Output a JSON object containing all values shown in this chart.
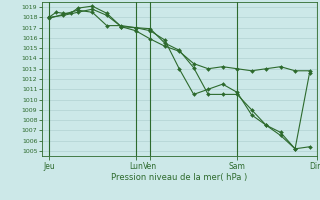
{
  "xlabel": "Pression niveau de la mer( hPa )",
  "ylim": [
    1004.5,
    1019.5
  ],
  "yticks": [
    1005,
    1006,
    1007,
    1008,
    1009,
    1010,
    1011,
    1012,
    1013,
    1014,
    1015,
    1016,
    1017,
    1018,
    1019
  ],
  "bg_color": "#cce8e8",
  "grid_color": "#aacccc",
  "line_color": "#2d6a2d",
  "xlim": [
    0,
    19
  ],
  "xtick_positions": [
    0.5,
    6.5,
    7.5,
    13.5,
    19.0
  ],
  "xtick_labels": [
    "Jeu",
    "Lun",
    "Ven",
    "Sam",
    "Dim"
  ],
  "vline_positions": [
    0.5,
    6.5,
    7.5,
    13.5,
    19.0
  ],
  "line1_x": [
    0.5,
    1.0,
    1.5,
    2.0,
    2.5,
    3.5,
    4.5,
    5.5,
    6.5,
    7.5,
    8.5,
    9.5,
    10.5,
    11.5,
    12.5,
    13.5,
    14.5,
    15.5,
    16.5,
    17.5,
    18.5
  ],
  "line1_y": [
    1018.0,
    1018.5,
    1018.4,
    1018.4,
    1018.9,
    1019.1,
    1018.4,
    1017.1,
    1017.0,
    1016.9,
    1015.5,
    1014.8,
    1013.1,
    1010.5,
    1010.5,
    1010.5,
    1009.0,
    1007.5,
    1006.5,
    1005.2,
    1005.4
  ],
  "line2_x": [
    0.5,
    1.5,
    2.5,
    3.5,
    4.5,
    5.5,
    6.5,
    7.5,
    8.5,
    9.5,
    10.5,
    11.5,
    12.5,
    13.5,
    14.5,
    15.5,
    16.5,
    17.5,
    18.5
  ],
  "line2_y": [
    1017.9,
    1018.3,
    1018.7,
    1018.5,
    1017.2,
    1017.2,
    1017.0,
    1016.7,
    1015.8,
    1013.0,
    1010.5,
    1011.0,
    1011.5,
    1010.7,
    1008.5,
    1007.5,
    1006.8,
    1005.2,
    1012.6
  ],
  "line3_x": [
    0.5,
    1.5,
    2.5,
    3.5,
    4.5,
    5.5,
    6.5,
    7.5,
    8.5,
    9.5,
    10.5,
    11.5,
    12.5,
    13.5,
    14.5,
    15.5,
    16.5,
    17.5,
    18.5
  ],
  "line3_y": [
    1018.0,
    1018.2,
    1018.5,
    1018.8,
    1018.2,
    1017.1,
    1016.7,
    1015.9,
    1015.2,
    1014.7,
    1013.5,
    1013.0,
    1013.2,
    1013.0,
    1012.8,
    1013.0,
    1013.2,
    1012.8,
    1012.8
  ]
}
